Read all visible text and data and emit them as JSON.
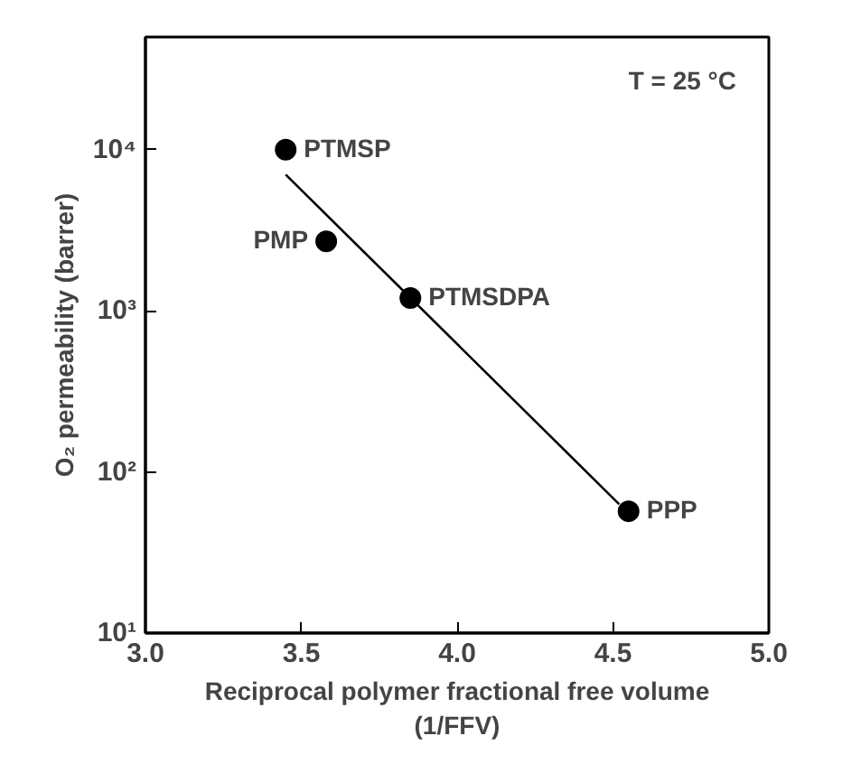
{
  "chart_data": {
    "type": "scatter",
    "xlabel": "Reciprocal polymer fractional free volume\n(1/FFV)",
    "ylabel": "O₂ permeability (barrer)",
    "log": "y",
    "grid": false,
    "marker": "circle",
    "xlim": [
      3.0,
      5.0
    ],
    "ylim": [
      10,
      50000
    ],
    "xticks": [
      {
        "value": 3.0,
        "label": "3.0"
      },
      {
        "value": 3.5,
        "label": "3.5"
      },
      {
        "value": 4.0,
        "label": "4.0"
      },
      {
        "value": 4.5,
        "label": "4.5"
      },
      {
        "value": 5.0,
        "label": "5.0"
      }
    ],
    "yticks": [
      {
        "value": 10,
        "label": "10¹"
      },
      {
        "value": 100,
        "label": "10²"
      },
      {
        "value": 1000,
        "label": "10³"
      },
      {
        "value": 10000,
        "label": "10⁴"
      }
    ],
    "x": [
      3.45,
      3.58,
      3.85,
      4.55
    ],
    "series": [
      {
        "color": "#000000",
        "values": [
          10000,
          2700,
          1200,
          57
        ]
      },
      {
        "type": "line",
        "color": "#000000",
        "x": [
          3.45,
          4.52
        ],
        "values": [
          7000,
          63
        ],
        "marker": "none"
      }
    ],
    "annotations": [
      "T = 25 °C",
      {
        "text": "PTMSP",
        "x": 3.45,
        "y": 10000
      },
      {
        "text": "PMP",
        "x": 3.58,
        "y": 2700
      },
      {
        "text": "PTMSDPA",
        "x": 3.85,
        "y": 1200
      },
      {
        "text": "PPP",
        "x": 4.55,
        "y": 57
      }
    ]
  }
}
